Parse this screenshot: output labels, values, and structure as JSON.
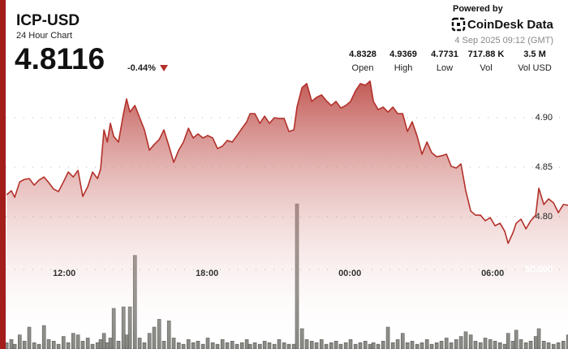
{
  "header": {
    "title": "ICP-USD",
    "subtitle": "24 Hour Chart",
    "price": 4.8116,
    "change": "-0.44%",
    "powered_by": "Powered by",
    "brand": "CoinDesk Data",
    "timestamp": "4 Sep 2025 09:12 (GMT)",
    "stats": [
      {
        "value": 4.8328,
        "label": "Open"
      },
      {
        "value": 4.9369,
        "label": "High"
      },
      {
        "value": 4.7731,
        "label": "Low"
      },
      {
        "value": "717.88 K",
        "label": "Vol"
      },
      {
        "value": "3.5 M",
        "label": "Vol USD"
      }
    ]
  },
  "chart_data": {
    "type": "line",
    "x": [
      9.58,
      9.78,
      9.92,
      10.13,
      10.33,
      10.53,
      10.74,
      10.94,
      11.15,
      11.35,
      11.56,
      11.76,
      11.97,
      12.17,
      12.38,
      12.58,
      12.78,
      12.99,
      13.19,
      13.4,
      13.53,
      13.67,
      13.81,
      13.94,
      14.08,
      14.28,
      14.49,
      14.62,
      14.76,
      14.97,
      15.17,
      15.37,
      15.58,
      15.78,
      15.99,
      16.19,
      16.4,
      16.6,
      16.81,
      17.01,
      17.22,
      17.42,
      17.62,
      17.83,
      18.03,
      18.24,
      18.44,
      18.65,
      18.85,
      19.06,
      19.26,
      19.47,
      19.67,
      19.81,
      20.01,
      20.22,
      20.42,
      20.62,
      20.83,
      21.03,
      21.24,
      21.44,
      21.65,
      21.78,
      21.99,
      22.19,
      22.4,
      22.6,
      22.81,
      23.01,
      23.22,
      23.42,
      23.62,
      23.83,
      24.03,
      24.24,
      24.44,
      24.65,
      24.85,
      24.99,
      25.19,
      25.4,
      25.6,
      25.81,
      26.01,
      26.22,
      26.42,
      26.62,
      26.83,
      27.03,
      27.24,
      27.44,
      27.65,
      27.85,
      28.06,
      28.26,
      28.47,
      28.67,
      28.87,
      29.08,
      29.28,
      29.49,
      29.69,
      29.9,
      30.1,
      30.31,
      30.51,
      30.65,
      30.85,
      30.99,
      31.19,
      31.4,
      31.6,
      31.81,
      31.94,
      32.15,
      32.35,
      32.56,
      32.76,
      32.97,
      33.17
    ],
    "series": [
      {
        "name": "Price",
        "color": "#b3302a",
        "values": [
          4.8221,
          4.8262,
          4.8196,
          4.8352,
          4.8377,
          4.8385,
          4.8319,
          4.8369,
          4.8401,
          4.8344,
          4.8278,
          4.8254,
          4.8352,
          4.8451,
          4.8401,
          4.8467,
          4.8205,
          4.8303,
          4.8451,
          4.8385,
          4.8483,
          4.8877,
          4.8754,
          4.8943,
          4.8811,
          4.8754,
          4.9041,
          4.9189,
          4.9057,
          4.9123,
          4.9,
          4.8877,
          4.8672,
          4.8729,
          4.8779,
          4.8877,
          4.8713,
          4.8549,
          4.8672,
          4.8754,
          4.8893,
          4.8795,
          4.8836,
          4.8795,
          4.882,
          4.8795,
          4.8688,
          4.8713,
          4.877,
          4.8754,
          4.882,
          4.8893,
          4.8959,
          4.9041,
          4.9041,
          4.8943,
          4.9016,
          4.8943,
          4.9,
          4.8992,
          4.8992,
          4.8861,
          4.8877,
          4.9107,
          4.9303,
          4.9344,
          4.9164,
          4.9205,
          4.923,
          4.9172,
          4.9123,
          4.9164,
          4.9098,
          4.9123,
          4.9164,
          4.9271,
          4.9344,
          4.9328,
          4.9369,
          4.9164,
          4.9082,
          4.9107,
          4.9057,
          4.9107,
          4.9041,
          4.9041,
          4.8861,
          4.8959,
          4.8811,
          4.8631,
          4.8754,
          4.8647,
          4.8606,
          4.8615,
          4.8631,
          4.8508,
          4.8492,
          4.8533,
          4.8262,
          4.8057,
          4.8016,
          4.8016,
          4.7959,
          4.7991,
          4.7909,
          4.7934,
          4.7852,
          4.7731,
          4.7836,
          4.7934,
          4.7975,
          4.7877,
          4.7959,
          4.8016,
          4.8287,
          4.8123,
          4.818,
          4.8139,
          4.8041,
          4.8123,
          4.8116
        ]
      },
      {
        "name": "Volume",
        "color": "#8a8a85",
        "axis": "y2",
        "values": [
          3000,
          5000,
          2000,
          8000,
          4000,
          13000,
          3000,
          2000,
          14000,
          5000,
          4000,
          2000,
          7000,
          3000,
          9000,
          8000,
          4000,
          6000,
          2000,
          3000,
          5000,
          9000,
          3000,
          6000,
          25000,
          4000,
          26000,
          8000,
          26000,
          59000,
          6000,
          3000,
          9000,
          13000,
          18000,
          4000,
          17000,
          6000,
          3000,
          2000,
          5000,
          3000,
          4000,
          2000,
          6000,
          3000,
          2000,
          5000,
          3000,
          4000,
          2000,
          3000,
          5000,
          2000,
          3000,
          2000,
          4000,
          3000,
          2000,
          5000,
          3000,
          2000,
          2000,
          92000,
          12000,
          5000,
          4000,
          3000,
          5000,
          2000,
          3000,
          4000,
          2000,
          3000,
          5000,
          2000,
          3000,
          4000,
          2000,
          3000,
          2000,
          4000,
          13000,
          3000,
          5000,
          9000,
          3000,
          4000,
          2000,
          3000,
          5000,
          2000,
          3000,
          4000,
          6000,
          3000,
          5000,
          7000,
          10000,
          8000,
          4000,
          3000,
          6000,
          5000,
          4000,
          3000,
          2000,
          9000,
          4000,
          11000,
          5000,
          3000,
          4000,
          7000,
          12000,
          4000,
          3000,
          2000,
          3000,
          4000,
          8000
        ]
      }
    ],
    "xlim": [
      9.2,
      33.2
    ],
    "xticks": [
      {
        "value": 12,
        "label": "12:00"
      },
      {
        "value": 18,
        "label": "18:00"
      },
      {
        "value": 24,
        "label": "00:00"
      },
      {
        "value": 30,
        "label": "06:00"
      }
    ],
    "ylim": [
      4.75,
      4.95
    ],
    "yticks": [
      {
        "value": 4.8,
        "label": "4.80"
      },
      {
        "value": 4.85,
        "label": "4.85"
      },
      {
        "value": 4.9,
        "label": "4.90"
      }
    ],
    "y2lim": [
      0,
      100000
    ],
    "y2ticks": [
      {
        "value": 50000,
        "label": "50,000"
      }
    ],
    "grid": true
  }
}
